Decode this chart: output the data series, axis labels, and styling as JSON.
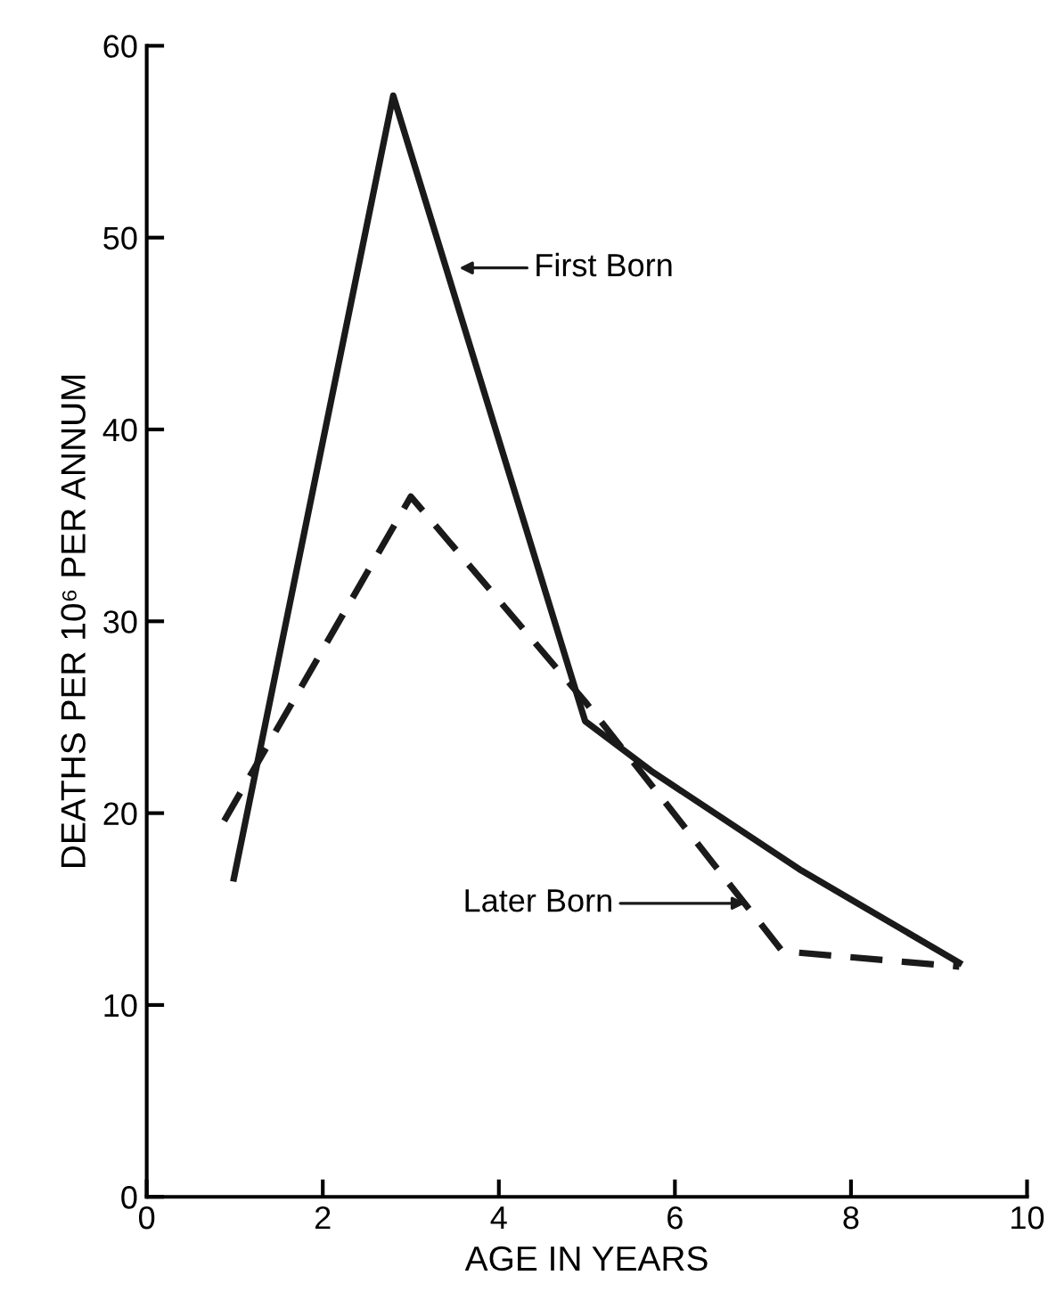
{
  "chart_data": {
    "type": "line",
    "xlabel": "AGE IN YEARS",
    "ylabel": "DEATHS PER 10⁶ PER ANNUM",
    "xlim": [
      0,
      10
    ],
    "ylim": [
      0,
      60
    ],
    "xticks": [
      0,
      2,
      4,
      6,
      8,
      10
    ],
    "yticks": [
      0,
      10,
      20,
      30,
      40,
      50,
      60
    ],
    "grid": false,
    "legend": false,
    "marker": "none",
    "series": [
      {
        "color": "#1a1a1a",
        "line_style": "solid",
        "x": [
          0.99,
          2.8,
          4.98,
          5.73,
          7.44,
          9.23
        ],
        "values": [
          16.6,
          57.4,
          24.8,
          22.2,
          17.0,
          12.2
        ]
      },
      {
        "color": "#1a1a1a",
        "line_style": "dashed",
        "x": [
          0.88,
          3.0,
          5.0,
          5.9,
          7.22,
          9.23
        ],
        "values": [
          19.6,
          36.5,
          25.7,
          20.5,
          12.8,
          12.0
        ]
      }
    ],
    "annotations": [
      "First Born",
      "Later Born"
    ]
  }
}
